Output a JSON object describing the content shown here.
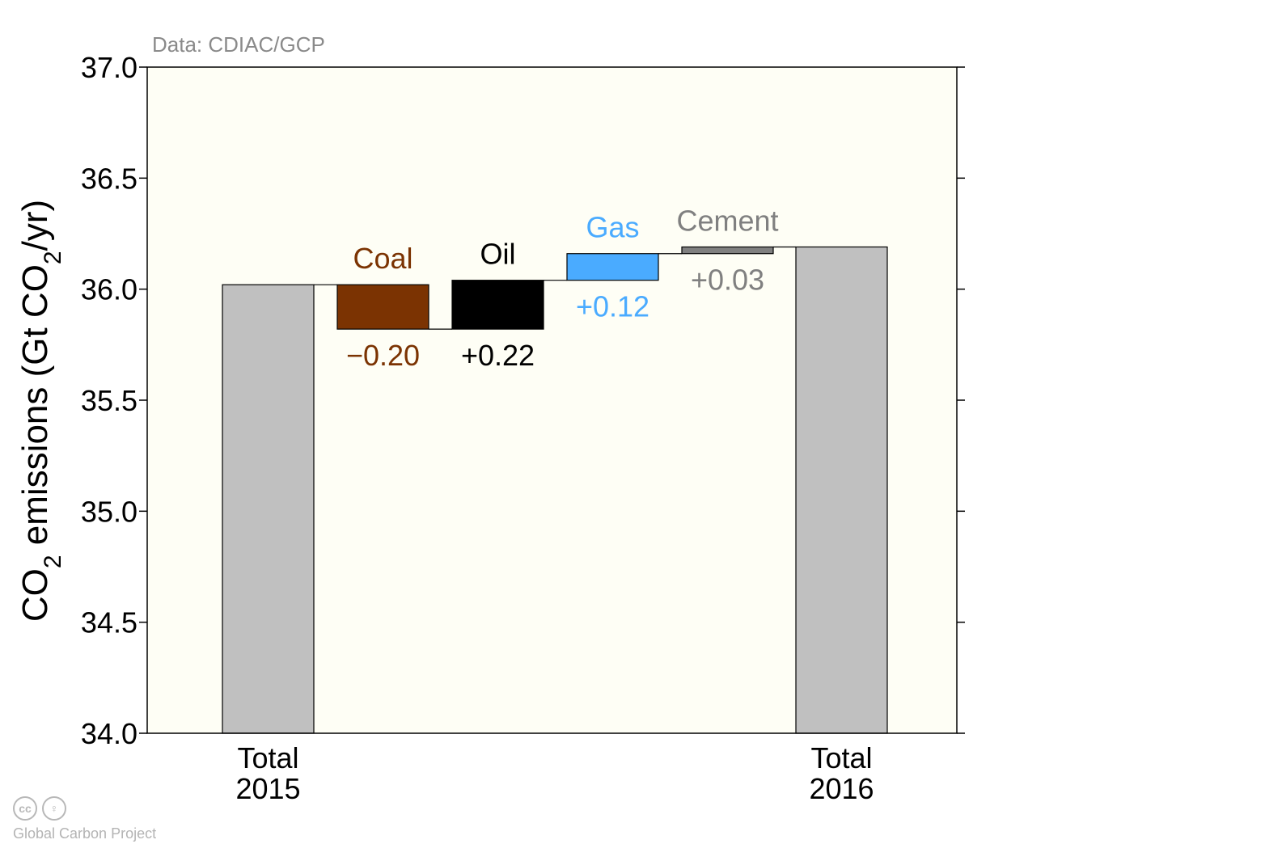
{
  "source_note": "Data: CDIAC/GCP",
  "footer": {
    "credit": "Global Carbon Project",
    "badges": [
      {
        "icon": "creative-commons-icon",
        "glyph": "cc"
      },
      {
        "icon": "attribution-person-icon",
        "glyph": "♀"
      }
    ]
  },
  "chart_data": {
    "type": "bar",
    "subtype": "waterfall",
    "ylabel": {
      "pre": "CO",
      "sub1": "2",
      "mid": " emissions (Gt CO",
      "sub2": "2",
      "post": "/yr)"
    },
    "ylim": [
      34.0,
      37.0
    ],
    "yticks": [
      34.0,
      34.5,
      35.0,
      35.5,
      36.0,
      36.5,
      37.0
    ],
    "ytick_labels": [
      "34.0",
      "34.5",
      "35.0",
      "35.5",
      "36.0",
      "36.5",
      "37.0"
    ],
    "plot_background": "#fefef5",
    "grid": false,
    "bars": [
      {
        "key": "total-2015",
        "kind": "total",
        "value": 36.02,
        "color": "#c0c0c0",
        "xlabel": [
          "Total",
          "2015"
        ]
      },
      {
        "key": "coal",
        "kind": "delta",
        "start": 36.02,
        "end": 35.82,
        "color": "#7b3302",
        "name": "Coal",
        "name_color": "#7b3302",
        "change_label": "−0.20",
        "change_color": "#7b3302"
      },
      {
        "key": "oil",
        "kind": "delta",
        "start": 35.82,
        "end": 36.04,
        "color": "#000000",
        "name": "Oil",
        "name_color": "#000000",
        "change_label": "+0.22",
        "change_color": "#000000"
      },
      {
        "key": "gas",
        "kind": "delta",
        "start": 36.04,
        "end": 36.16,
        "color": "#4aabff",
        "name": "Gas",
        "name_color": "#4aabff",
        "change_label": "+0.12",
        "change_color": "#4aabff"
      },
      {
        "key": "cement",
        "kind": "delta",
        "start": 36.16,
        "end": 36.19,
        "color": "#808080",
        "name": "Cement",
        "name_color": "#808080",
        "change_label": "+0.03",
        "change_color": "#808080"
      },
      {
        "key": "total-2016",
        "kind": "total",
        "value": 36.19,
        "color": "#c0c0c0",
        "xlabel": [
          "Total",
          "2016"
        ]
      }
    ]
  }
}
